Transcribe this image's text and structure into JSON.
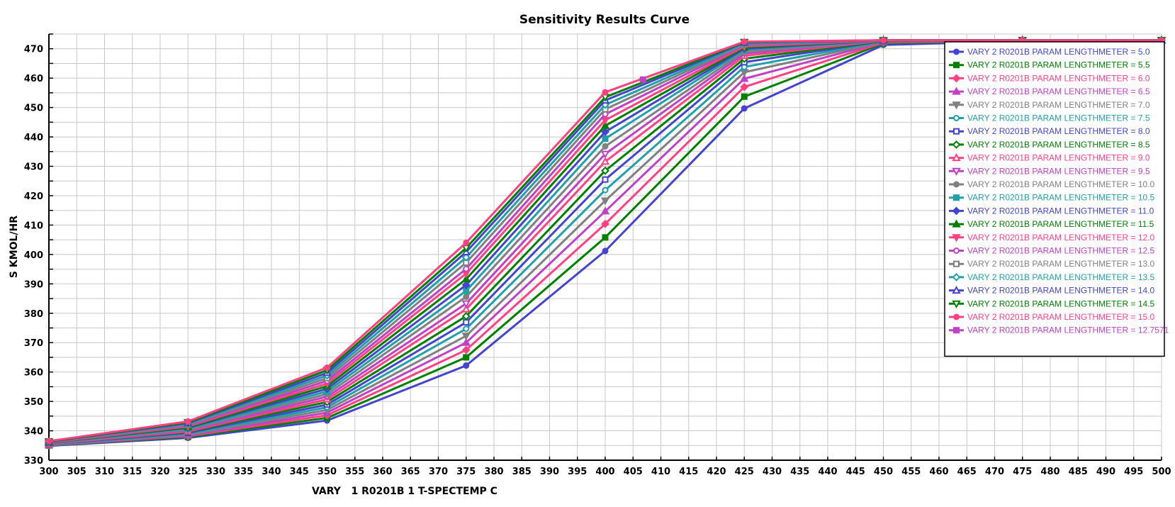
{
  "chart_data": {
    "type": "line",
    "title": "Sensitivity Results Curve",
    "xlabel": "VARY   1 R0201B 1 T-SPECTEMP C",
    "ylabel": "S KMOL/HR",
    "xlim": [
      300,
      500
    ],
    "ylim": [
      330,
      475
    ],
    "xticks": [
      300,
      305,
      310,
      315,
      320,
      325,
      330,
      335,
      340,
      345,
      350,
      355,
      360,
      365,
      370,
      375,
      380,
      385,
      390,
      395,
      400,
      405,
      410,
      415,
      420,
      425,
      430,
      435,
      440,
      445,
      450,
      455,
      460,
      465,
      470,
      475,
      480,
      485,
      490,
      495,
      500
    ],
    "yticks": [
      330,
      340,
      350,
      360,
      370,
      380,
      390,
      400,
      410,
      420,
      430,
      440,
      450,
      460,
      470
    ],
    "grid": true,
    "legend_position": "top-right",
    "x": [
      300,
      325,
      350,
      375,
      400,
      425,
      450,
      475,
      500
    ],
    "colors": [
      "#4444cc",
      "#008000",
      "#ff4081",
      "#c040c8",
      "#808080",
      "#20a0a8"
    ],
    "series": [
      {
        "name": "VARY   2 R0201B PARAM LENGTHMETER  =  5.0",
        "values": [
          334.9,
          337.6,
          343.5,
          362.2,
          401.2,
          449.7,
          471.3,
          472.6,
          472.9
        ]
      },
      {
        "name": "VARY   2 R0201B PARAM LENGTHMETER  =  5.5",
        "values": [
          335.0,
          337.9,
          344.4,
          365.0,
          405.8,
          453.7,
          471.8,
          472.8,
          472.9
        ]
      },
      {
        "name": "VARY   2 R0201B PARAM LENGTHMETER  =  6.0",
        "values": [
          335.1,
          338.2,
          345.3,
          367.5,
          410.4,
          457.0,
          472.1,
          472.9,
          472.9
        ]
      },
      {
        "name": "VARY   2 R0201B PARAM LENGTHMETER  =  6.5",
        "values": [
          335.1,
          338.4,
          346.2,
          370.0,
          414.7,
          459.8,
          472.3,
          472.9,
          472.9
        ]
      },
      {
        "name": "VARY   2 R0201B PARAM LENGTHMETER  =  7.0",
        "values": [
          335.2,
          338.7,
          347.1,
          372.3,
          418.3,
          462.0,
          472.4,
          472.9,
          472.9
        ]
      },
      {
        "name": "VARY   2 R0201B PARAM LENGTHMETER  =  7.5",
        "values": [
          335.3,
          339.0,
          348.0,
          374.7,
          421.9,
          463.8,
          472.5,
          472.9,
          472.9
        ]
      },
      {
        "name": "VARY   2 R0201B PARAM LENGTHMETER  =  8.0",
        "values": [
          335.4,
          339.3,
          348.9,
          376.9,
          425.5,
          465.4,
          472.6,
          472.9,
          472.9
        ]
      },
      {
        "name": "VARY   2 R0201B PARAM LENGTHMETER  =  8.5",
        "values": [
          335.5,
          339.6,
          349.8,
          379.0,
          428.5,
          466.6,
          472.6,
          472.9,
          472.9
        ]
      },
      {
        "name": "VARY   2 R0201B PARAM LENGTHMETER  =  9.0",
        "values": [
          335.5,
          339.8,
          350.7,
          381.4,
          431.6,
          467.6,
          472.7,
          472.9,
          472.9
        ]
      },
      {
        "name": "VARY   2 R0201B PARAM LENGTHMETER  =  9.5",
        "values": [
          335.6,
          340.1,
          351.6,
          383.3,
          434.2,
          468.4,
          472.7,
          472.9,
          472.9
        ]
      },
      {
        "name": "VARY   2 R0201B PARAM LENGTHMETER  =  10.0",
        "values": [
          335.7,
          340.4,
          352.5,
          385.6,
          436.8,
          469.0,
          472.7,
          472.9,
          472.9
        ]
      },
      {
        "name": "VARY   2 R0201B PARAM LENGTHMETER  =  10.5",
        "values": [
          335.8,
          340.7,
          353.4,
          387.6,
          439.4,
          469.6,
          472.8,
          472.9,
          472.9
        ]
      },
      {
        "name": "VARY   2 R0201B PARAM LENGTHMETER  =  11.0",
        "values": [
          335.9,
          341.0,
          354.3,
          389.6,
          441.7,
          470.0,
          472.8,
          472.9,
          472.9
        ]
      },
      {
        "name": "VARY   2 R0201B PARAM LENGTHMETER  =  11.5",
        "values": [
          335.9,
          341.2,
          355.2,
          391.6,
          443.8,
          470.4,
          472.8,
          472.9,
          472.9
        ]
      },
      {
        "name": "VARY   2 R0201B PARAM LENGTHMETER  =  12.0",
        "values": [
          336.0,
          341.5,
          356.1,
          393.5,
          445.7,
          470.8,
          472.8,
          472.9,
          472.9
        ]
      },
      {
        "name": "VARY   2 R0201B PARAM LENGTHMETER  =  12.5",
        "values": [
          336.1,
          341.8,
          357.0,
          395.1,
          447.7,
          471.2,
          472.8,
          472.9,
          472.9
        ]
      },
      {
        "name": "VARY   2 R0201B PARAM LENGTHMETER  =  13.0",
        "values": [
          336.2,
          342.1,
          357.9,
          397.2,
          449.4,
          471.5,
          472.9,
          472.9,
          472.9
        ]
      },
      {
        "name": "VARY   2 R0201B PARAM LENGTHMETER  =  13.5",
        "values": [
          336.3,
          342.4,
          358.8,
          399.0,
          450.9,
          471.8,
          472.9,
          472.9,
          472.9
        ]
      },
      {
        "name": "VARY   2 R0201B PARAM LENGTHMETER  =  14.0",
        "values": [
          336.3,
          342.6,
          359.7,
          400.8,
          452.4,
          472.1,
          472.9,
          472.9,
          472.9
        ]
      },
      {
        "name": "VARY   2 R0201B PARAM LENGTHMETER  =  14.5",
        "values": [
          336.4,
          342.9,
          360.6,
          402.2,
          453.5,
          472.3,
          472.9,
          472.9,
          472.9
        ]
      },
      {
        "name": "VARY   2 R0201B PARAM LENGTHMETER  =  15.0",
        "values": [
          336.5,
          343.2,
          361.5,
          404.0,
          455.2,
          472.4,
          472.9,
          472.9,
          472.9
        ]
      },
      {
        "name": "VARY   2 R0201B PARAM LENGTHMETER  =  12.7571",
        "points": [
          [
            406.8,
            459.5
          ]
        ]
      }
    ]
  }
}
